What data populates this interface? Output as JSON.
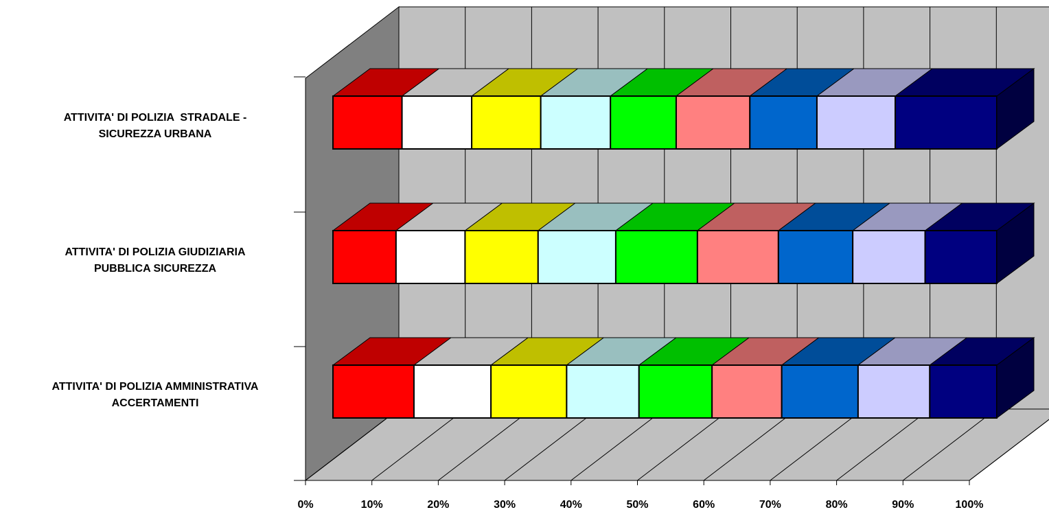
{
  "chart_data": {
    "type": "bar",
    "subtype": "3d-stacked-percent-horizontal",
    "title": "",
    "xlabel": "",
    "ylabel": "",
    "xlim": [
      0,
      100
    ],
    "grid": true,
    "legend": "none",
    "x_ticks": [
      "0%",
      "10%",
      "20%",
      "30%",
      "40%",
      "50%",
      "60%",
      "70%",
      "80%",
      "90%",
      "100%"
    ],
    "categories": [
      {
        "line1": "ATTIVITA' DI POLIZIA  STRADALE -",
        "line2": "SICUREZZA URBANA"
      },
      {
        "line1": "ATTIVITA' DI POLIZIA GIUDIZIARIA",
        "line2": "PUBBLICA SICUREZZA"
      },
      {
        "line1": "ATTIVITA' DI POLIZIA AMMINISTRATIVA",
        "line2": "ACCERTAMENTI"
      }
    ],
    "series": [
      {
        "color": "#FF0000",
        "values": [
          10.4,
          9.5,
          12.2
        ]
      },
      {
        "color": "#FFFFFF",
        "values": [
          10.5,
          10.4,
          11.6
        ]
      },
      {
        "color": "#FFFF00",
        "values": [
          10.4,
          11.0,
          11.4
        ]
      },
      {
        "color": "#CCFFFF",
        "values": [
          10.5,
          11.7,
          10.9
        ]
      },
      {
        "color": "#00FF00",
        "values": [
          9.9,
          12.3,
          11.0
        ]
      },
      {
        "color": "#FF8080",
        "values": [
          11.1,
          12.2,
          10.5
        ]
      },
      {
        "color": "#0066CC",
        "values": [
          10.1,
          11.2,
          11.5
        ]
      },
      {
        "color": "#CCCCFF",
        "values": [
          11.8,
          10.9,
          10.8
        ]
      },
      {
        "color": "#000080",
        "values": [
          15.3,
          10.8,
          10.1
        ]
      }
    ]
  }
}
